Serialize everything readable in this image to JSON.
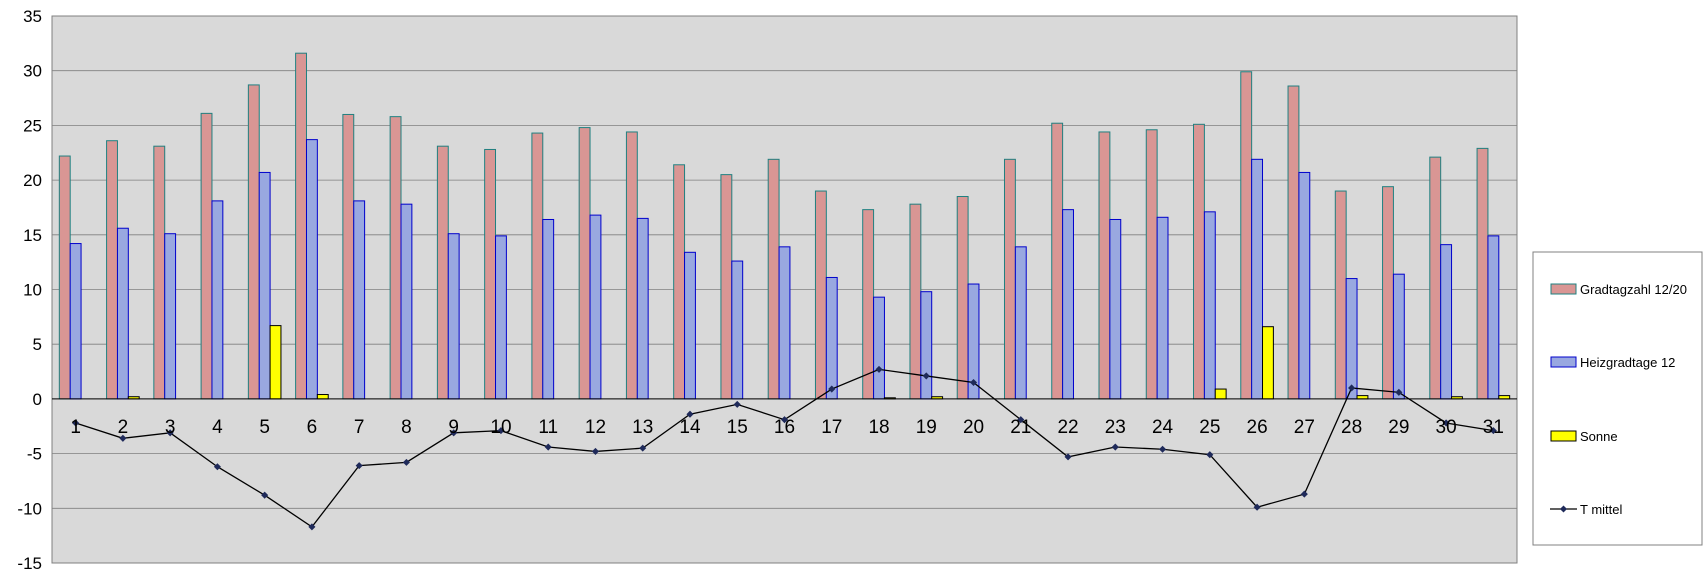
{
  "chart_data": {
    "type": "bar",
    "title": "",
    "xlabel": "",
    "ylabel": "",
    "ylim": [
      -15,
      35
    ],
    "yticks": [
      -15,
      -10,
      -5,
      0,
      5,
      10,
      15,
      20,
      25,
      30,
      35
    ],
    "grid": true,
    "legend_position": "right",
    "categories": [
      "1",
      "2",
      "3",
      "4",
      "5",
      "6",
      "7",
      "8",
      "9",
      "10",
      "11",
      "12",
      "13",
      "14",
      "15",
      "16",
      "17",
      "18",
      "19",
      "20",
      "21",
      "22",
      "23",
      "24",
      "25",
      "26",
      "27",
      "28",
      "29",
      "30",
      "31"
    ],
    "series": [
      {
        "name": "Gradtagzahl 12/20",
        "type": "bar",
        "fill": "#D99694",
        "stroke": "#1F8080",
        "values": [
          22.2,
          23.6,
          23.1,
          26.1,
          28.7,
          31.6,
          26.0,
          25.8,
          23.1,
          22.8,
          24.3,
          24.8,
          24.4,
          21.4,
          20.5,
          21.9,
          19.0,
          17.3,
          17.8,
          18.5,
          21.9,
          25.2,
          24.4,
          24.6,
          25.1,
          29.9,
          28.6,
          19.0,
          19.4,
          22.1,
          22.9
        ]
      },
      {
        "name": "Heizgradtage 12",
        "type": "bar",
        "fill": "#99A8E0",
        "stroke": "#0000CC",
        "values": [
          14.2,
          15.6,
          15.1,
          18.1,
          20.7,
          23.7,
          18.1,
          17.8,
          15.1,
          14.9,
          16.4,
          16.8,
          16.5,
          13.4,
          12.6,
          13.9,
          11.1,
          9.3,
          9.8,
          10.5,
          13.9,
          17.3,
          16.4,
          16.6,
          17.1,
          21.9,
          20.7,
          11.0,
          11.4,
          14.1,
          14.9
        ]
      },
      {
        "name": "Sonne",
        "type": "bar",
        "fill": "#FFFF00",
        "stroke": "#000000",
        "values": [
          0,
          0.2,
          0,
          0,
          6.7,
          0.4,
          0,
          0,
          0,
          0,
          0,
          0,
          0,
          0,
          0,
          0,
          0,
          0.1,
          0.2,
          0,
          0,
          0,
          0,
          0,
          0.9,
          6.6,
          0,
          0.3,
          0,
          0.2,
          0.3
        ]
      },
      {
        "name": "T mittel",
        "type": "line",
        "stroke": "#000000",
        "marker": "#1F2A5A",
        "values": [
          -2.2,
          -3.6,
          -3.1,
          -6.2,
          -8.8,
          -11.7,
          -6.1,
          -5.8,
          -3.1,
          -2.9,
          -4.4,
          -4.8,
          -4.5,
          -1.4,
          -0.5,
          -1.9,
          0.9,
          2.7,
          2.1,
          1.5,
          -1.9,
          -5.3,
          -4.4,
          -4.6,
          -5.1,
          -9.9,
          -8.7,
          1.0,
          0.6,
          -2.2,
          -2.9
        ]
      }
    ]
  }
}
